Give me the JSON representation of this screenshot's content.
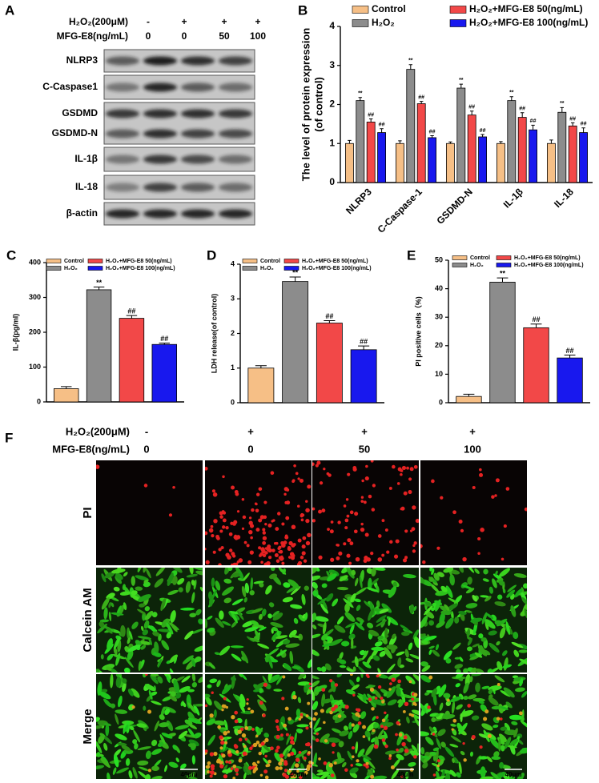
{
  "western_blot": {
    "panel": "A",
    "treatments": [
      {
        "name": "H₂O₂(200μM)",
        "levels": [
          "-",
          "+",
          "+",
          "+"
        ]
      },
      {
        "name": "MFG-E8(ng/mL)",
        "levels": [
          "0",
          "0",
          "50",
          "100"
        ]
      }
    ],
    "proteins": [
      "NLRP3",
      "C-Caspase1",
      "GSDMD",
      "GSDMD-N",
      "IL-1β",
      "IL-18",
      "β-actin"
    ]
  },
  "chart_data": [
    {
      "panel": "B",
      "type": "bar",
      "ylabel": [
        "The level of protein expression",
        "(of control)"
      ],
      "categories": [
        "NLRP3",
        "C-Caspase-1",
        "GSDMD-N",
        "IL-1β",
        "IL-18"
      ],
      "ylim": [
        0,
        4
      ],
      "yticks": [
        0,
        1,
        2,
        3,
        4
      ],
      "series": [
        {
          "name": "Control",
          "color": "#f6bf86",
          "values": [
            1,
            1,
            1,
            1,
            1
          ],
          "errors": [
            0.08,
            0.07,
            0.04,
            0.05,
            0.09
          ]
        },
        {
          "name": "H₂O₂",
          "color": "#8c8c8c",
          "values": [
            2.1,
            2.9,
            2.42,
            2.1,
            1.8
          ],
          "errors": [
            0.08,
            0.12,
            0.1,
            0.1,
            0.12
          ],
          "significance": [
            "**",
            "**",
            "**",
            "**",
            "**"
          ]
        },
        {
          "name": "H₂O₂+MFG-E8 50(ng/mL)",
          "color": "#f24848",
          "values": [
            1.55,
            2.02,
            1.73,
            1.67,
            1.45
          ],
          "errors": [
            0.08,
            0.06,
            0.1,
            0.12,
            0.08
          ],
          "significance": [
            "##",
            "##",
            "##",
            "##",
            "##"
          ]
        },
        {
          "name": "H₂O₂+MFG-E8 100(ng/mL)",
          "color": "#1818ee",
          "values": [
            1.28,
            1.15,
            1.17,
            1.35,
            1.28
          ],
          "errors": [
            0.1,
            0.05,
            0.06,
            0.12,
            0.12
          ],
          "significance": [
            "##",
            "##",
            "##",
            "##",
            "##"
          ]
        }
      ]
    },
    {
      "panel": "C",
      "type": "bar",
      "ylabel": "IL-β(pg/ml)",
      "categories": [
        null
      ],
      "ylim": [
        0,
        400
      ],
      "yticks": [
        0,
        100,
        200,
        300,
        400
      ],
      "series": [
        {
          "name": "Control",
          "color": "#f6bf86",
          "values": [
            38
          ],
          "errors": [
            6
          ]
        },
        {
          "name": "H₂O₂",
          "color": "#8c8c8c",
          "values": [
            322
          ],
          "errors": [
            8
          ],
          "significance": [
            "**"
          ]
        },
        {
          "name": "H₂O₂+MFG-E8 50(ng/mL)",
          "color": "#f24848",
          "values": [
            240
          ],
          "errors": [
            8
          ],
          "significance": [
            "##"
          ]
        },
        {
          "name": "H₂O₂+MFG-E8 100(ng/mL)",
          "color": "#1818ee",
          "values": [
            165
          ],
          "errors": [
            4
          ],
          "significance": [
            "##"
          ]
        }
      ]
    },
    {
      "panel": "D",
      "type": "bar",
      "ylabel": "LDH release(of control)",
      "categories": [
        null
      ],
      "ylim": [
        0,
        4
      ],
      "yticks": [
        0,
        1,
        2,
        3,
        4
      ],
      "series": [
        {
          "name": "Control",
          "color": "#f6bf86",
          "values": [
            1.0
          ],
          "errors": [
            0.07
          ]
        },
        {
          "name": "H₂O₂",
          "color": "#8c8c8c",
          "values": [
            3.5
          ],
          "errors": [
            0.13
          ],
          "significance": [
            "**"
          ]
        },
        {
          "name": "H₂O₂+MFG-E8 50(ng/mL)",
          "color": "#f24848",
          "values": [
            2.3
          ],
          "errors": [
            0.07
          ],
          "significance": [
            "##"
          ]
        },
        {
          "name": "H₂O₂+MFG-E8 100(ng/mL)",
          "color": "#1818ee",
          "values": [
            1.53
          ],
          "errors": [
            0.11
          ],
          "significance": [
            "##"
          ]
        }
      ]
    },
    {
      "panel": "E",
      "type": "bar",
      "ylabel": "PI positive cells（%)",
      "categories": [
        null
      ],
      "ylim": [
        0,
        50
      ],
      "yticks": [
        0,
        10,
        20,
        30,
        40,
        50
      ],
      "series": [
        {
          "name": "Control",
          "color": "#f6bf86",
          "values": [
            2.2
          ],
          "errors": [
            0.8
          ]
        },
        {
          "name": "H₂O₂",
          "color": "#8c8c8c",
          "values": [
            42.3
          ],
          "errors": [
            1.5
          ],
          "significance": [
            "**"
          ]
        },
        {
          "name": "H₂O₂+MFG-E8 50(ng/mL)",
          "color": "#f24848",
          "values": [
            26.3
          ],
          "errors": [
            1.3
          ],
          "significance": [
            "##"
          ]
        },
        {
          "name": "H₂O₂+MFG-E8 100(ng/mL)",
          "color": "#1818ee",
          "values": [
            15.7
          ],
          "errors": [
            1.0
          ],
          "significance": [
            "##"
          ]
        }
      ]
    }
  ],
  "microscopy": {
    "panel": "F",
    "treatments": [
      {
        "name": "H₂O₂(200μM)",
        "levels": [
          "-",
          "+",
          "+",
          "+"
        ]
      },
      {
        "name": "MFG-E8(ng/mL)",
        "levels": [
          "0",
          "0",
          "50",
          "100"
        ]
      }
    ],
    "stains": [
      "PI",
      "Calcein AM",
      "Merge"
    ],
    "scale_bar": "40μm"
  }
}
